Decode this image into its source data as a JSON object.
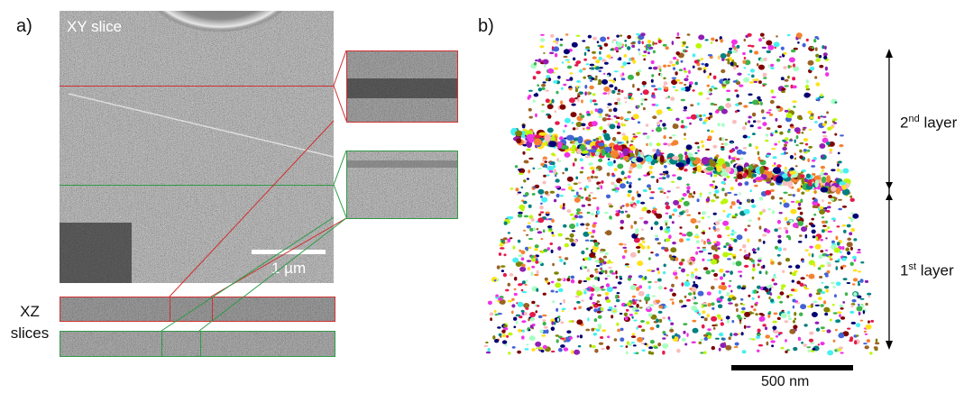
{
  "panel_a": {
    "label": "a)",
    "xy_title": "XY slice",
    "scale_label": "1 µm",
    "xz_label_line1": "XZ",
    "xz_label_line2": "slices",
    "colors": {
      "red_frame": "#d03030",
      "green_frame": "#2f9a48"
    }
  },
  "panel_b": {
    "label": "b)",
    "upper_layer": {
      "main": "2",
      "sup": "nd",
      "tail": " layer"
    },
    "lower_layer": {
      "main": "1",
      "sup": "st",
      "tail": " layer"
    },
    "scale_label": "500 nm",
    "particle_palette": [
      "#e6194b",
      "#3cb44b",
      "#ffe119",
      "#4363d8",
      "#f58231",
      "#911eb4",
      "#46f0f0",
      "#f032e6",
      "#bcf60c",
      "#fabebe",
      "#008080",
      "#9a6324",
      "#800000",
      "#aaffc3",
      "#808000",
      "#000075"
    ]
  }
}
